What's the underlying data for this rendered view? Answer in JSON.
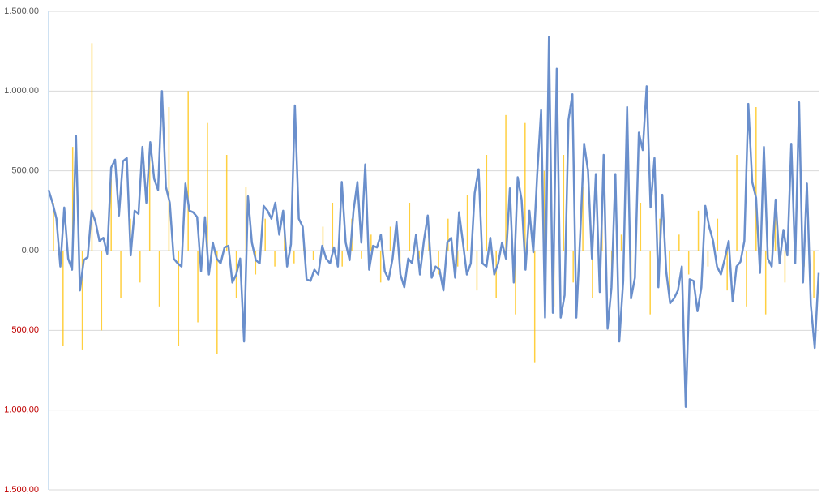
{
  "chart_data": {
    "type": "line",
    "ylim": [
      -1500,
      1500
    ],
    "yticks": [
      {
        "value": -1500,
        "label": "1.500,00"
      },
      {
        "value": -1000,
        "label": "1.000,00"
      },
      {
        "value": -500,
        "label": "500,00"
      },
      {
        "value": 0,
        "label": "0,00"
      },
      {
        "value": 500,
        "label": "500,00"
      },
      {
        "value": 1000,
        "label": "1.000,00"
      },
      {
        "value": 1500,
        "label": "1.500,00"
      }
    ],
    "negative_tick_color": "#c00000",
    "grid": true,
    "series": [
      {
        "type": "bar",
        "color": "#ffc000",
        "values": [
          300,
          -600,
          650,
          -620,
          1300,
          -500,
          450,
          -300,
          200,
          -200,
          600,
          -350,
          900,
          -600,
          1000,
          -450,
          800,
          -650,
          600,
          -300,
          400,
          -150,
          200,
          -100,
          100,
          -80,
          50,
          -60,
          150,
          300,
          -100,
          200,
          -50,
          100,
          -200,
          150,
          -100,
          300,
          -50,
          100,
          -150,
          200,
          -100,
          350,
          -250,
          600,
          -300,
          850,
          -400,
          800,
          -700,
          500,
          -350,
          600,
          -200,
          400,
          -300,
          200,
          -150,
          100,
          -250,
          300,
          -400,
          200,
          -300,
          100,
          -150,
          250,
          -100,
          200,
          -250,
          600,
          -350,
          900,
          -400,
          300,
          -200,
          150,
          -100,
          -300
        ]
      },
      {
        "type": "line",
        "color": "#6a8fcc",
        "values": [
          380,
          300,
          200,
          -100,
          270,
          -50,
          -120,
          720,
          -250,
          -60,
          -40,
          250,
          180,
          60,
          80,
          -20,
          520,
          570,
          220,
          560,
          580,
          -30,
          250,
          230,
          650,
          300,
          680,
          450,
          380,
          1000,
          400,
          300,
          -50,
          -80,
          -100,
          420,
          250,
          240,
          210,
          -130,
          210,
          -150,
          50,
          -50,
          -80,
          20,
          30,
          -200,
          -150,
          -50,
          -570,
          340,
          50,
          -60,
          -80,
          280,
          250,
          200,
          300,
          100,
          250,
          -100,
          40,
          910,
          200,
          150,
          -180,
          -190,
          -120,
          -150,
          30,
          -50,
          -80,
          20,
          -100,
          430,
          50,
          -60,
          250,
          430,
          50,
          540,
          -120,
          30,
          20,
          100,
          -130,
          -180,
          -50,
          180,
          -150,
          -230,
          -50,
          -80,
          100,
          -150,
          60,
          220,
          -170,
          -100,
          -120,
          -250,
          50,
          80,
          -170,
          240,
          50,
          -150,
          -80,
          360,
          510,
          -80,
          -100,
          80,
          -150,
          -80,
          50,
          -50,
          390,
          -200,
          460,
          320,
          -120,
          250,
          -10,
          480,
          880,
          -420,
          1340,
          -390,
          1140,
          -420,
          -280,
          820,
          980,
          -420,
          100,
          670,
          500,
          -50,
          480,
          -260,
          600,
          -490,
          -230,
          480,
          -570,
          -190,
          900,
          -300,
          -170,
          740,
          630,
          1030,
          270,
          580,
          -230,
          350,
          -130,
          -330,
          -300,
          -250,
          -100,
          -980,
          -180,
          -190,
          -380,
          -230,
          280,
          150,
          60,
          -100,
          -150,
          -50,
          60,
          -320,
          -100,
          -70,
          60,
          920,
          430,
          330,
          -140,
          650,
          -50,
          -100,
          320,
          -80,
          130,
          -30,
          670,
          -80,
          930,
          -200,
          420,
          -340,
          -610,
          -140
        ]
      }
    ]
  }
}
